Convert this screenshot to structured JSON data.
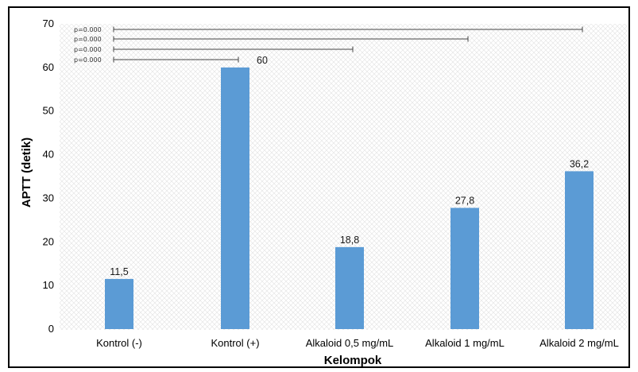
{
  "chart_data": {
    "type": "bar",
    "title": "",
    "xlabel": "Kelompok",
    "ylabel": "APTT (detik)",
    "ylim": [
      0,
      70
    ],
    "yticks": [
      0,
      10,
      20,
      30,
      40,
      50,
      60,
      70
    ],
    "grid": false,
    "bar_color": "#5b9bd5",
    "categories": [
      "Kontrol (-)",
      "Kontrol (+)",
      "Alkaloid 0,5 mg/mL",
      "Alkaloid 1 mg/mL",
      "Alkaloid 2 mg/mL"
    ],
    "values": [
      11.5,
      60,
      18.8,
      27.8,
      36.2
    ],
    "value_labels": [
      "11,5",
      "60",
      "18,8",
      "27,8",
      "36,2"
    ],
    "annotations": [
      {
        "text": "p=0.000",
        "from": "Kontrol (-)",
        "to": "Alkaloid 2 mg/mL"
      },
      {
        "text": "p=0.000",
        "from": "Kontrol (-)",
        "to": "Alkaloid 1 mg/mL"
      },
      {
        "text": "p=0.000",
        "from": "Kontrol (-)",
        "to": "Alkaloid 0,5 mg/mL"
      },
      {
        "text": "p=0.000",
        "from": "Kontrol (-)",
        "to": "Kontrol (+)"
      }
    ]
  }
}
